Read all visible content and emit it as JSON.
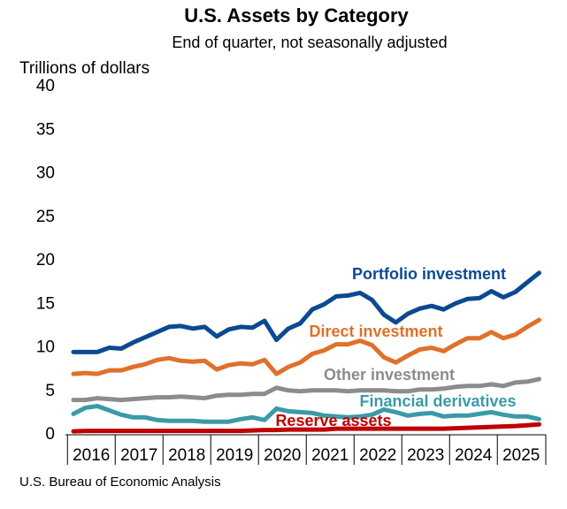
{
  "chart_data": {
    "type": "line",
    "title": "U.S. Assets by Category",
    "subtitle": "End of quarter, not seasonally adjusted",
    "y_label": "Trillions of dollars",
    "source": "U.S. Bureau of Economic Analysis",
    "categories": [
      "2016",
      null,
      null,
      null,
      "2017",
      null,
      null,
      null,
      "2018",
      null,
      null,
      null,
      "2019",
      null,
      null,
      null,
      "2020",
      null,
      null,
      null,
      "2021",
      null,
      null,
      null,
      "2022",
      null,
      null,
      null,
      "2023",
      null,
      null,
      null,
      "2024",
      null,
      null,
      null,
      "2025",
      null,
      null,
      null
    ],
    "ylim": [
      0,
      40
    ],
    "yticks": [
      0,
      5,
      10,
      15,
      20,
      25,
      30,
      35,
      40
    ],
    "grid": false,
    "series": [
      {
        "name": "Portfolio investment",
        "color": "#0b4a92",
        "values": [
          9.5,
          9.5,
          9.5,
          10.0,
          9.9,
          10.6,
          11.2,
          11.8,
          12.4,
          12.5,
          12.2,
          12.4,
          11.3,
          12.1,
          12.4,
          12.3,
          13.1,
          10.9,
          12.2,
          12.8,
          14.4,
          15.0,
          15.9,
          16.0,
          16.3,
          15.5,
          13.8,
          12.9,
          13.9,
          14.5,
          14.8,
          14.4,
          15.1,
          15.6,
          15.7,
          16.5,
          15.8,
          16.4,
          17.5,
          18.6
        ]
      },
      {
        "name": "Direct investment",
        "color": "#e0702a",
        "values": [
          7.0,
          7.1,
          7.0,
          7.4,
          7.4,
          7.8,
          8.1,
          8.6,
          8.8,
          8.5,
          8.4,
          8.5,
          7.5,
          8.0,
          8.2,
          8.1,
          8.6,
          7.0,
          7.8,
          8.3,
          9.3,
          9.7,
          10.4,
          10.4,
          10.8,
          10.3,
          8.9,
          8.3,
          9.1,
          9.8,
          10.0,
          9.6,
          10.4,
          11.1,
          11.1,
          11.8,
          11.1,
          11.5,
          12.4,
          13.2
        ]
      },
      {
        "name": "Other investment",
        "color": "#8c8c8c",
        "values": [
          4.0,
          4.0,
          4.2,
          4.1,
          4.0,
          4.1,
          4.2,
          4.3,
          4.3,
          4.4,
          4.3,
          4.2,
          4.5,
          4.6,
          4.6,
          4.7,
          4.7,
          5.4,
          5.1,
          5.0,
          5.1,
          5.1,
          5.1,
          5.0,
          5.1,
          5.1,
          5.1,
          5.0,
          5.0,
          5.2,
          5.2,
          5.3,
          5.5,
          5.6,
          5.6,
          5.8,
          5.6,
          6.0,
          6.1,
          6.4
        ]
      },
      {
        "name": "Financial derivatives",
        "color": "#3a9aa8",
        "values": [
          2.4,
          3.1,
          3.3,
          2.8,
          2.3,
          2.0,
          2.0,
          1.7,
          1.6,
          1.6,
          1.6,
          1.5,
          1.5,
          1.5,
          1.8,
          2.0,
          1.7,
          3.0,
          2.7,
          2.6,
          2.5,
          2.2,
          2.1,
          2.0,
          2.1,
          2.3,
          2.9,
          2.6,
          2.2,
          2.4,
          2.5,
          2.1,
          2.2,
          2.2,
          2.4,
          2.6,
          2.3,
          2.1,
          2.1,
          1.8
        ]
      },
      {
        "name": "Reserve assets",
        "color": "#c00000",
        "values": [
          0.4,
          0.45,
          0.45,
          0.45,
          0.45,
          0.45,
          0.45,
          0.45,
          0.45,
          0.45,
          0.45,
          0.45,
          0.45,
          0.45,
          0.45,
          0.5,
          0.55,
          0.55,
          0.6,
          0.6,
          0.6,
          0.6,
          0.7,
          0.7,
          0.7,
          0.7,
          0.7,
          0.7,
          0.7,
          0.7,
          0.7,
          0.7,
          0.75,
          0.8,
          0.85,
          0.9,
          0.95,
          1.0,
          1.1,
          1.2
        ]
      }
    ]
  }
}
